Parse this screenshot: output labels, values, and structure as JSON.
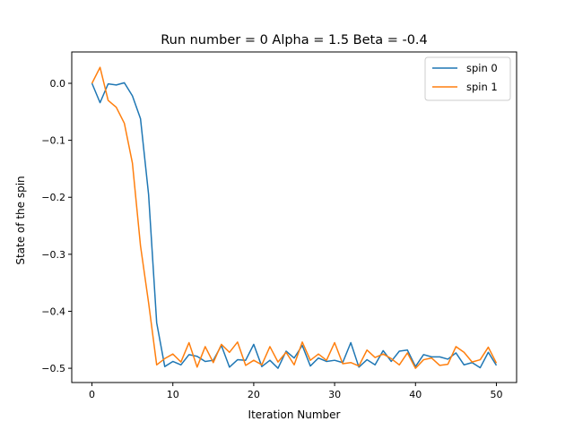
{
  "chart_data": {
    "type": "line",
    "title": "Run number = 0 Alpha = 1.5 Beta = -0.4",
    "xlabel": "Iteration Number",
    "ylabel": "State of the spin",
    "xlim": [
      -2.5,
      52.5
    ],
    "ylim": [
      -0.525,
      0.055
    ],
    "xticks": [
      0,
      10,
      20,
      30,
      40,
      50
    ],
    "xtick_labels": [
      "0",
      "10",
      "20",
      "30",
      "40",
      "50"
    ],
    "yticks": [
      0.0,
      -0.1,
      -0.2,
      -0.3,
      -0.4,
      -0.5
    ],
    "ytick_labels": [
      "0.0",
      "−0.1",
      "−0.2",
      "−0.3",
      "−0.4",
      "−0.5"
    ],
    "grid": false,
    "legend_position": "top-right",
    "x": [
      0,
      1,
      2,
      3,
      4,
      5,
      6,
      7,
      8,
      9,
      10,
      11,
      12,
      13,
      14,
      15,
      16,
      17,
      18,
      19,
      20,
      21,
      22,
      23,
      24,
      25,
      26,
      27,
      28,
      29,
      30,
      31,
      32,
      33,
      34,
      35,
      36,
      37,
      38,
      39,
      40,
      41,
      42,
      43,
      44,
      45,
      46,
      47,
      48,
      49,
      50
    ],
    "series": [
      {
        "name": "spin 0",
        "color": "#1f77b4",
        "values": [
          0.0,
          -0.034,
          -0.001,
          -0.003,
          0.001,
          -0.022,
          -0.062,
          -0.195,
          -0.42,
          -0.497,
          -0.488,
          -0.494,
          -0.476,
          -0.479,
          -0.488,
          -0.486,
          -0.46,
          -0.498,
          -0.485,
          -0.486,
          -0.458,
          -0.497,
          -0.486,
          -0.5,
          -0.47,
          -0.482,
          -0.46,
          -0.496,
          -0.482,
          -0.488,
          -0.486,
          -0.49,
          -0.455,
          -0.498,
          -0.485,
          -0.494,
          -0.469,
          -0.488,
          -0.47,
          -0.468,
          -0.497,
          -0.476,
          -0.48,
          -0.48,
          -0.484,
          -0.473,
          -0.494,
          -0.49,
          -0.499,
          -0.472,
          -0.495
        ]
      },
      {
        "name": "spin 1",
        "color": "#ff7f0e",
        "values": [
          0.0,
          0.028,
          -0.03,
          -0.042,
          -0.07,
          -0.14,
          -0.285,
          -0.385,
          -0.494,
          -0.483,
          -0.475,
          -0.489,
          -0.455,
          -0.498,
          -0.462,
          -0.49,
          -0.458,
          -0.472,
          -0.454,
          -0.495,
          -0.486,
          -0.494,
          -0.462,
          -0.489,
          -0.472,
          -0.494,
          -0.454,
          -0.486,
          -0.475,
          -0.486,
          -0.455,
          -0.492,
          -0.49,
          -0.496,
          -0.468,
          -0.481,
          -0.475,
          -0.483,
          -0.494,
          -0.473,
          -0.5,
          -0.485,
          -0.482,
          -0.495,
          -0.493,
          -0.462,
          -0.472,
          -0.489,
          -0.485,
          -0.463,
          -0.491
        ]
      }
    ]
  }
}
